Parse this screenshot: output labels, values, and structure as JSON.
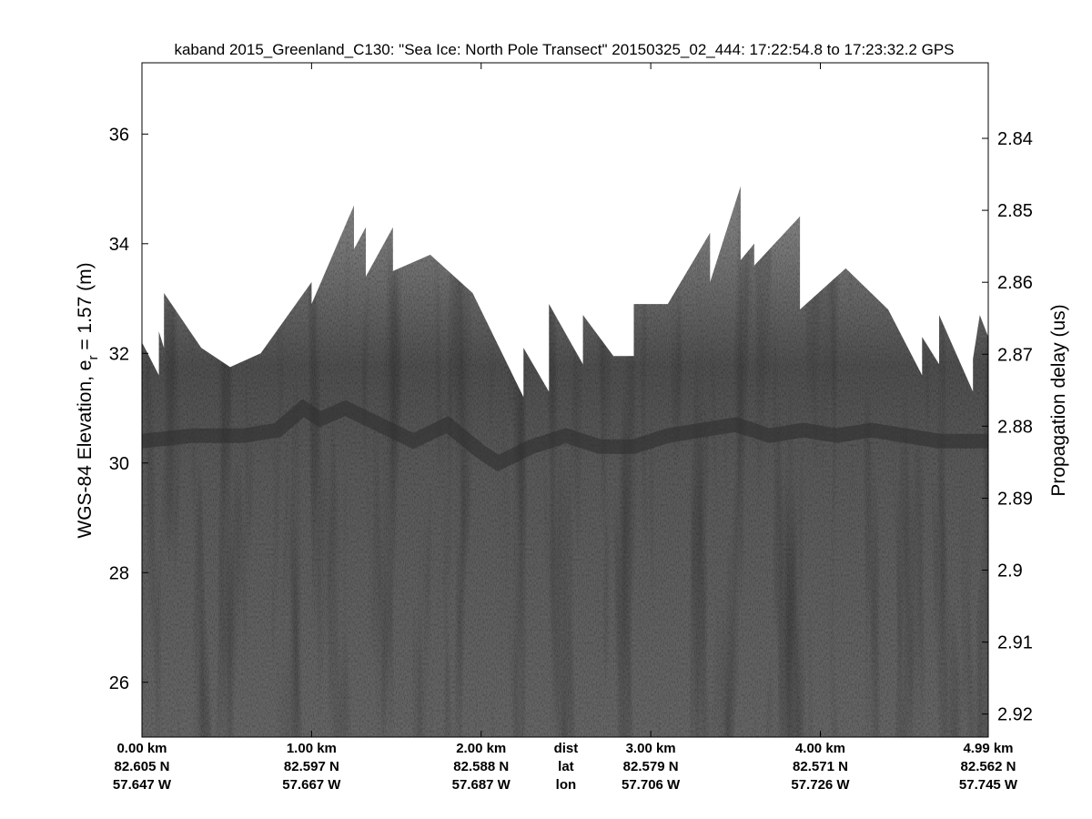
{
  "chart_data": {
    "type": "heatmap",
    "title": "kaband 2015_Greenland_C130: \"Sea Ice: North Pole Transect\"  20150325_02_444: 17:22:54.8 to 17:23:32.2 GPS",
    "ylabel_left": "WGS-84 Elevation, e",
    "ylabel_left_subscript": "r",
    "ylabel_left_suffix": " = 1.57 (m)",
    "ylabel_right": "Propagation delay (us)",
    "xlim_km": [
      0,
      4.99
    ],
    "ylim_left": [
      25.0,
      37.3
    ],
    "ylim_right": [
      2.9232,
      2.8295
    ],
    "left_ticks": [
      {
        "value": 26,
        "label": "26"
      },
      {
        "value": 28,
        "label": "28"
      },
      {
        "value": 30,
        "label": "30"
      },
      {
        "value": 32,
        "label": "32"
      },
      {
        "value": 34,
        "label": "34"
      },
      {
        "value": 36,
        "label": "36"
      }
    ],
    "right_ticks": [
      {
        "value": 2.84,
        "label": "2.84"
      },
      {
        "value": 2.85,
        "label": "2.85"
      },
      {
        "value": 2.86,
        "label": "2.86"
      },
      {
        "value": 2.87,
        "label": "2.87"
      },
      {
        "value": 2.88,
        "label": "2.88"
      },
      {
        "value": 2.89,
        "label": "2.89"
      },
      {
        "value": 2.9,
        "label": "2.9"
      },
      {
        "value": 2.91,
        "label": "2.91"
      },
      {
        "value": 2.92,
        "label": "2.92"
      }
    ],
    "x_ticks": [
      {
        "dist_km": 0.0,
        "dist": "0.00 km",
        "lat": "82.605 N",
        "lon": "57.647 W"
      },
      {
        "dist_km": 1.0,
        "dist": "1.00 km",
        "lat": "82.597 N",
        "lon": "57.667 W"
      },
      {
        "dist_km": 2.0,
        "dist": "2.00 km",
        "lat": "82.588 N",
        "lon": "57.687 W"
      },
      {
        "dist_km": 3.0,
        "dist": "3.00 km",
        "lat": "82.579 N",
        "lon": "57.706 W"
      },
      {
        "dist_km": 4.0,
        "dist": "4.00 km",
        "lat": "82.571 N",
        "lon": "57.726 W"
      },
      {
        "dist_km": 4.99,
        "dist": "4.99 km",
        "lat": "82.562 N",
        "lon": "57.745 W"
      }
    ],
    "row_labels": {
      "dist": "dist",
      "lat": "lat",
      "lon": "lon"
    },
    "row_labels_at_km": 2.5,
    "data_top_boundary": [
      [
        0.0,
        32.2
      ],
      [
        0.1,
        31.6
      ],
      [
        0.1,
        32.4
      ],
      [
        0.13,
        32.1
      ],
      [
        0.13,
        33.1
      ],
      [
        0.35,
        32.1
      ],
      [
        0.52,
        31.75
      ],
      [
        0.7,
        32.0
      ],
      [
        1.0,
        33.3
      ],
      [
        1.0,
        33.8
      ],
      [
        1.0,
        32.9
      ],
      [
        1.25,
        34.7
      ],
      [
        1.25,
        33.9
      ],
      [
        1.32,
        34.3
      ],
      [
        1.32,
        33.4
      ],
      [
        1.48,
        34.3
      ],
      [
        1.48,
        33.5
      ],
      [
        1.7,
        33.8
      ],
      [
        1.95,
        33.1
      ],
      [
        2.25,
        31.2
      ],
      [
        2.25,
        32.1
      ],
      [
        2.4,
        31.3
      ],
      [
        2.4,
        32.9
      ],
      [
        2.6,
        31.8
      ],
      [
        2.6,
        32.7
      ],
      [
        2.78,
        31.95
      ],
      [
        2.9,
        31.95
      ],
      [
        2.9,
        32.9
      ],
      [
        3.1,
        32.9
      ],
      [
        3.35,
        34.2
      ],
      [
        3.35,
        33.3
      ],
      [
        3.53,
        35.05
      ],
      [
        3.53,
        33.7
      ],
      [
        3.61,
        34.0
      ],
      [
        3.61,
        33.6
      ],
      [
        3.88,
        34.5
      ],
      [
        3.88,
        32.8
      ],
      [
        4.15,
        33.55
      ],
      [
        4.4,
        32.8
      ],
      [
        4.6,
        31.6
      ],
      [
        4.6,
        32.3
      ],
      [
        4.7,
        31.8
      ],
      [
        4.7,
        32.7
      ],
      [
        4.9,
        31.3
      ],
      [
        4.9,
        31.9
      ],
      [
        4.94,
        32.7
      ],
      [
        4.99,
        32.3
      ]
    ],
    "ice_surface_profile": [
      [
        0.0,
        30.4
      ],
      [
        0.3,
        30.5
      ],
      [
        0.6,
        30.5
      ],
      [
        0.8,
        30.6
      ],
      [
        0.95,
        31.0
      ],
      [
        1.05,
        30.8
      ],
      [
        1.2,
        31.0
      ],
      [
        1.4,
        30.7
      ],
      [
        1.6,
        30.4
      ],
      [
        1.8,
        30.7
      ],
      [
        2.0,
        30.2
      ],
      [
        2.1,
        30.0
      ],
      [
        2.3,
        30.3
      ],
      [
        2.5,
        30.5
      ],
      [
        2.7,
        30.3
      ],
      [
        2.9,
        30.3
      ],
      [
        3.1,
        30.5
      ],
      [
        3.3,
        30.6
      ],
      [
        3.5,
        30.7
      ],
      [
        3.7,
        30.5
      ],
      [
        3.9,
        30.6
      ],
      [
        4.1,
        30.5
      ],
      [
        4.3,
        30.6
      ],
      [
        4.5,
        30.5
      ],
      [
        4.7,
        30.4
      ],
      [
        4.99,
        30.4
      ]
    ],
    "colormap": "gray",
    "grid": false
  }
}
